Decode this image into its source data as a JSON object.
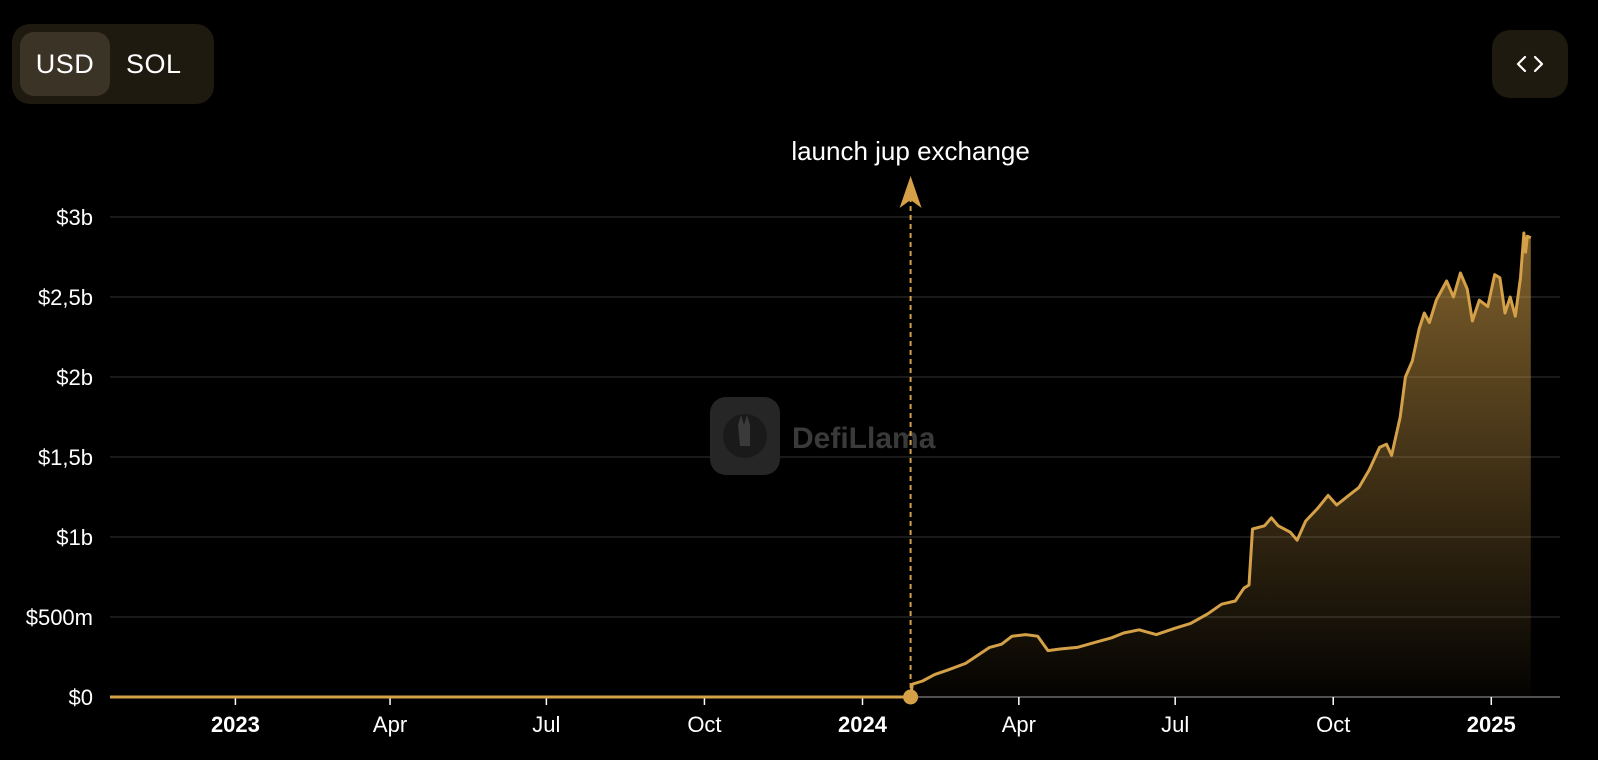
{
  "toggle": {
    "options": [
      "USD",
      "SOL"
    ],
    "active": "USD"
  },
  "embed_button": {
    "icon": "code-icon"
  },
  "watermark": {
    "text": "DefiLlama",
    "icon": "llama-logo-icon"
  },
  "colors": {
    "line": "#d4a048",
    "grid": "#222222",
    "annotation": "#d4a048"
  },
  "chart_data": {
    "type": "area",
    "title": "",
    "xlabel": "",
    "ylabel": "",
    "ylim": [
      0,
      3000000000
    ],
    "grid": true,
    "y_ticks": [
      {
        "value": 0,
        "label": "$0"
      },
      {
        "value": 500000000,
        "label": "$500m"
      },
      {
        "value": 1000000000,
        "label": "$1b"
      },
      {
        "value": 1500000000,
        "label": "$1,5b"
      },
      {
        "value": 2000000000,
        "label": "$2b"
      },
      {
        "value": 2500000000,
        "label": "$2,5b"
      },
      {
        "value": 3000000000,
        "label": "$3b"
      }
    ],
    "xlim": [
      "2022-10-20",
      "2025-02-10"
    ],
    "x_ticks": [
      {
        "date": "2023-01-01",
        "label": "2023",
        "bold": true
      },
      {
        "date": "2023-04-01",
        "label": "Apr",
        "bold": false
      },
      {
        "date": "2023-07-01",
        "label": "Jul",
        "bold": false
      },
      {
        "date": "2023-10-01",
        "label": "Oct",
        "bold": false
      },
      {
        "date": "2024-01-01",
        "label": "2024",
        "bold": true
      },
      {
        "date": "2024-04-01",
        "label": "Apr",
        "bold": false
      },
      {
        "date": "2024-07-01",
        "label": "Jul",
        "bold": false
      },
      {
        "date": "2024-10-01",
        "label": "Oct",
        "bold": false
      },
      {
        "date": "2025-01-01",
        "label": "2025",
        "bold": true
      }
    ],
    "annotations": [
      {
        "date": "2024-01-29",
        "label": "launch jup exchange"
      }
    ],
    "series": [
      {
        "values": [
          [
            "2022-10-20",
            0
          ],
          [
            "2024-01-29",
            0
          ],
          [
            "2024-01-30",
            80000000
          ],
          [
            "2024-02-05",
            100000000
          ],
          [
            "2024-02-12",
            140000000
          ],
          [
            "2024-02-20",
            170000000
          ],
          [
            "2024-03-01",
            210000000
          ],
          [
            "2024-03-08",
            260000000
          ],
          [
            "2024-03-15",
            310000000
          ],
          [
            "2024-03-22",
            330000000
          ],
          [
            "2024-03-28",
            380000000
          ],
          [
            "2024-04-05",
            390000000
          ],
          [
            "2024-04-12",
            380000000
          ],
          [
            "2024-04-18",
            290000000
          ],
          [
            "2024-04-25",
            300000000
          ],
          [
            "2024-05-05",
            310000000
          ],
          [
            "2024-05-15",
            340000000
          ],
          [
            "2024-05-25",
            370000000
          ],
          [
            "2024-06-01",
            400000000
          ],
          [
            "2024-06-10",
            420000000
          ],
          [
            "2024-06-20",
            390000000
          ],
          [
            "2024-07-01",
            430000000
          ],
          [
            "2024-07-10",
            460000000
          ],
          [
            "2024-07-20",
            520000000
          ],
          [
            "2024-07-28",
            580000000
          ],
          [
            "2024-08-05",
            600000000
          ],
          [
            "2024-08-10",
            680000000
          ],
          [
            "2024-08-13",
            700000000
          ],
          [
            "2024-08-15",
            1050000000
          ],
          [
            "2024-08-22",
            1070000000
          ],
          [
            "2024-08-26",
            1120000000
          ],
          [
            "2024-08-30",
            1070000000
          ],
          [
            "2024-09-06",
            1030000000
          ],
          [
            "2024-09-10",
            980000000
          ],
          [
            "2024-09-15",
            1100000000
          ],
          [
            "2024-09-22",
            1180000000
          ],
          [
            "2024-09-28",
            1260000000
          ],
          [
            "2024-10-03",
            1200000000
          ],
          [
            "2024-10-10",
            1260000000
          ],
          [
            "2024-10-16",
            1310000000
          ],
          [
            "2024-10-22",
            1420000000
          ],
          [
            "2024-10-28",
            1560000000
          ],
          [
            "2024-11-01",
            1580000000
          ],
          [
            "2024-11-04",
            1510000000
          ],
          [
            "2024-11-09",
            1750000000
          ],
          [
            "2024-11-12",
            2000000000
          ],
          [
            "2024-11-16",
            2100000000
          ],
          [
            "2024-11-20",
            2300000000
          ],
          [
            "2024-11-23",
            2400000000
          ],
          [
            "2024-11-26",
            2340000000
          ],
          [
            "2024-11-30",
            2480000000
          ],
          [
            "2024-12-06",
            2600000000
          ],
          [
            "2024-12-10",
            2500000000
          ],
          [
            "2024-12-14",
            2650000000
          ],
          [
            "2024-12-18",
            2550000000
          ],
          [
            "2024-12-21",
            2350000000
          ],
          [
            "2024-12-25",
            2480000000
          ],
          [
            "2024-12-30",
            2440000000
          ],
          [
            "2025-01-03",
            2640000000
          ],
          [
            "2025-01-06",
            2620000000
          ],
          [
            "2025-01-09",
            2400000000
          ],
          [
            "2025-01-12",
            2500000000
          ],
          [
            "2025-01-15",
            2380000000
          ],
          [
            "2025-01-18",
            2620000000
          ],
          [
            "2025-01-20",
            2900000000
          ],
          [
            "2025-01-21",
            2780000000
          ],
          [
            "2025-01-22",
            2880000000
          ],
          [
            "2025-01-24",
            2870000000
          ]
        ]
      }
    ]
  }
}
